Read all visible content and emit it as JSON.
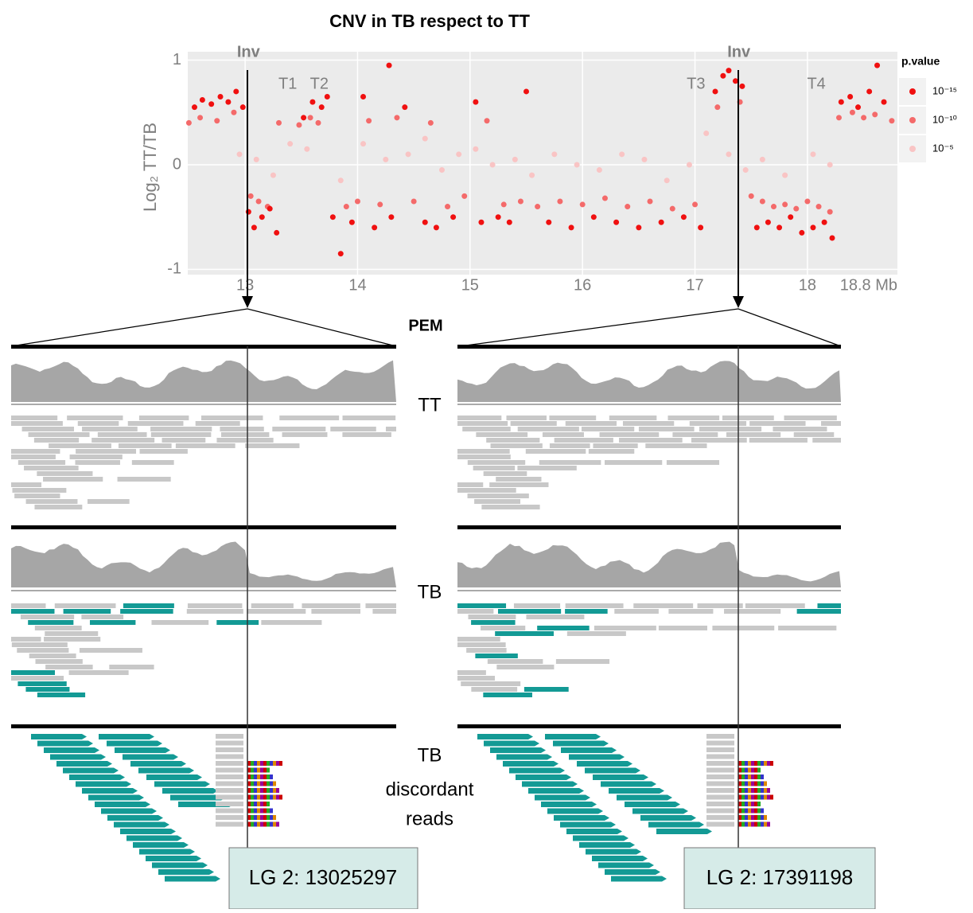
{
  "chart_data": {
    "type": "scatter",
    "title": "CNV in TB respect to TT",
    "y_label": "Log₂ TT/TB",
    "xlim": [
      12.49,
      18.8
    ],
    "xticks": [
      13,
      14,
      15,
      16,
      17,
      18,
      {
        "value": 18.8,
        "label": "18.8 Mb"
      }
    ],
    "ylim": [
      -1.05,
      1.08
    ],
    "yticks": [
      -1,
      0,
      1
    ],
    "grid": true,
    "legend_title": "p.value",
    "legend": "right",
    "annotations": [
      {
        "text": "Inv",
        "x": 13.03
      },
      {
        "text": "T1",
        "x": 13.45
      },
      {
        "text": "T2",
        "x": 13.73
      },
      {
        "text": "T3",
        "x": 17.08
      },
      {
        "text": "Inv",
        "x": 17.39
      },
      {
        "text": "T4",
        "x": 18.15
      }
    ],
    "series": [
      {
        "name": "10⁻¹⁵",
        "color": "#f01010",
        "x": [
          12.55,
          12.62,
          12.7,
          12.78,
          12.85,
          12.92,
          12.98,
          13.03,
          13.08,
          13.15,
          13.22,
          13.28,
          13.52,
          13.6,
          13.68,
          13.73,
          13.78,
          13.85,
          13.95,
          14.05,
          14.15,
          14.28,
          14.3,
          14.42,
          14.6,
          14.7,
          14.85,
          15.05,
          15.1,
          15.25,
          15.35,
          15.5,
          15.7,
          15.9,
          16.1,
          16.3,
          16.5,
          16.7,
          16.9,
          17.05,
          17.18,
          17.25,
          17.3,
          17.36,
          17.42,
          17.55,
          17.65,
          17.75,
          17.85,
          17.95,
          18.05,
          18.15,
          18.22,
          18.3,
          18.38,
          18.45,
          18.55,
          18.62,
          18.68
        ],
        "values": [
          0.55,
          0.62,
          0.58,
          0.65,
          0.6,
          0.7,
          0.55,
          -0.45,
          -0.6,
          -0.5,
          -0.42,
          -0.65,
          0.45,
          0.6,
          0.55,
          0.65,
          -0.5,
          -0.85,
          -0.55,
          0.65,
          -0.6,
          0.95,
          -0.5,
          0.55,
          -0.55,
          -0.6,
          -0.5,
          0.6,
          -0.55,
          -0.5,
          -0.55,
          0.7,
          -0.55,
          -0.6,
          -0.5,
          -0.55,
          -0.6,
          -0.55,
          -0.5,
          -0.6,
          0.7,
          0.85,
          0.9,
          0.8,
          0.75,
          -0.6,
          -0.55,
          -0.6,
          -0.5,
          -0.65,
          -0.6,
          -0.55,
          -0.7,
          0.6,
          0.65,
          0.55,
          0.7,
          0.95,
          0.6
        ]
      },
      {
        "name": "10⁻¹⁰",
        "color": "#f46a6a",
        "x": [
          12.5,
          12.6,
          12.75,
          12.9,
          13.05,
          13.12,
          13.2,
          13.3,
          13.48,
          13.58,
          13.65,
          13.9,
          14.0,
          14.1,
          14.2,
          14.35,
          14.5,
          14.65,
          14.8,
          14.95,
          15.15,
          15.3,
          15.45,
          15.6,
          15.8,
          16.0,
          16.2,
          16.4,
          16.6,
          16.8,
          17.0,
          17.2,
          17.4,
          17.5,
          17.6,
          17.7,
          17.8,
          17.9,
          18.0,
          18.1,
          18.2,
          18.28,
          18.4,
          18.5,
          18.6,
          18.75
        ],
        "values": [
          0.4,
          0.45,
          0.42,
          0.5,
          -0.3,
          -0.35,
          -0.4,
          0.4,
          0.38,
          0.45,
          0.4,
          -0.4,
          -0.35,
          0.42,
          -0.38,
          0.45,
          -0.35,
          0.4,
          -0.4,
          -0.3,
          0.42,
          -0.38,
          -0.35,
          -0.4,
          -0.35,
          -0.38,
          -0.32,
          -0.4,
          -0.35,
          -0.42,
          -0.38,
          0.55,
          0.6,
          -0.3,
          -0.35,
          -0.4,
          -0.38,
          -0.42,
          -0.35,
          -0.4,
          -0.45,
          0.45,
          0.5,
          0.45,
          0.48,
          0.42
        ]
      },
      {
        "name": "10⁻⁵",
        "color": "#f9c4c4",
        "x": [
          12.95,
          13.1,
          13.25,
          13.4,
          13.55,
          13.85,
          14.05,
          14.25,
          14.45,
          14.6,
          14.75,
          14.9,
          15.05,
          15.2,
          15.4,
          15.55,
          15.75,
          15.95,
          16.15,
          16.35,
          16.55,
          16.75,
          16.95,
          17.1,
          17.3,
          17.45,
          17.6,
          17.8,
          18.05,
          18.2
        ],
        "values": [
          0.1,
          0.05,
          -0.1,
          0.2,
          0.15,
          -0.15,
          0.2,
          0.05,
          0.1,
          0.25,
          -0.05,
          0.1,
          0.15,
          0.0,
          0.05,
          -0.1,
          0.1,
          0.0,
          -0.05,
          0.1,
          0.05,
          -0.15,
          0.0,
          0.3,
          0.1,
          -0.05,
          0.05,
          -0.1,
          0.1,
          0.0
        ]
      }
    ]
  },
  "panels": {
    "title": "PEM",
    "tt_label": "TT",
    "tb_label": "TB",
    "discordant_label": [
      "TB",
      "discordant",
      "reads"
    ],
    "positions": [
      "LG 2: 13025297",
      "LG 2: 17391198"
    ]
  }
}
